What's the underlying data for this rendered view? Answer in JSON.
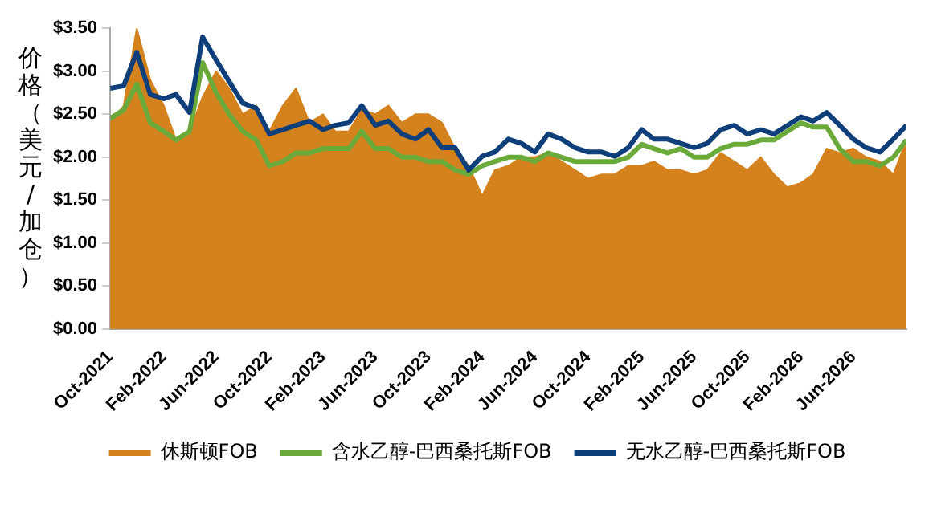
{
  "chart_data": {
    "type": "line",
    "ylabel": "价格（美元/加仓）",
    "x": [
      "2021-10",
      "2021-11",
      "2021-12",
      "2022-01",
      "2022-02",
      "2022-03",
      "2022-04",
      "2022-05",
      "2022-06",
      "2022-07",
      "2022-08",
      "2022-09",
      "2022-10",
      "2022-11",
      "2022-12",
      "2023-01",
      "2023-02",
      "2023-03",
      "2023-04",
      "2023-05",
      "2023-06",
      "2023-07",
      "2023-08",
      "2023-09",
      "2023-10",
      "2023-11",
      "2023-12",
      "2024-01",
      "2024-02",
      "2024-03",
      "2024-04",
      "2024-05",
      "2024-06",
      "2024-07",
      "2024-08",
      "2024-09",
      "2024-10",
      "2024-11",
      "2024-12",
      "2025-01",
      "2025-02",
      "2025-03",
      "2025-04",
      "2025-05",
      "2025-06",
      "2025-07",
      "2025-08",
      "2025-09",
      "2025-10",
      "2025-11",
      "2025-12",
      "2026-01",
      "2026-02",
      "2026-03",
      "2026-04",
      "2026-05",
      "2026-06",
      "2026-07",
      "2026-08",
      "2026-09",
      "2026-10"
    ],
    "series": [
      {
        "name": "休斯顿FOB",
        "type": "area",
        "color": "#d4821e",
        "values": [
          2.4,
          2.6,
          3.5,
          2.9,
          2.6,
          2.2,
          2.3,
          2.7,
          3.0,
          2.8,
          2.5,
          2.6,
          2.3,
          2.6,
          2.8,
          2.4,
          2.5,
          2.3,
          2.3,
          2.55,
          2.5,
          2.6,
          2.4,
          2.5,
          2.5,
          2.4,
          2.1,
          1.9,
          1.55,
          1.85,
          1.9,
          2.0,
          2.0,
          2.05,
          1.95,
          1.85,
          1.75,
          1.8,
          1.8,
          1.9,
          1.9,
          1.95,
          1.85,
          1.85,
          1.8,
          1.85,
          2.05,
          1.95,
          1.85,
          2.0,
          1.8,
          1.65,
          1.7,
          1.8,
          2.1,
          2.05,
          2.1,
          2.0,
          1.95,
          1.8,
          2.2
        ]
      },
      {
        "name": "含水乙醇-巴西桑托斯FOB",
        "type": "line",
        "color": "#6aaa3a",
        "values": [
          2.45,
          2.55,
          2.85,
          2.4,
          2.3,
          2.2,
          2.3,
          3.1,
          2.75,
          2.5,
          2.3,
          2.2,
          1.9,
          1.95,
          2.05,
          2.05,
          2.1,
          2.1,
          2.1,
          2.3,
          2.1,
          2.1,
          2.0,
          2.0,
          1.95,
          1.95,
          1.85,
          1.8,
          1.9,
          1.95,
          2.0,
          2.0,
          1.95,
          2.05,
          2.0,
          1.95,
          1.95,
          1.95,
          1.95,
          2.0,
          2.15,
          2.1,
          2.05,
          2.1,
          2.0,
          2.0,
          2.1,
          2.15,
          2.15,
          2.2,
          2.2,
          2.3,
          2.4,
          2.35,
          2.35,
          2.1,
          1.95,
          1.95,
          1.9,
          2.0,
          2.2
        ]
      },
      {
        "name": "无水乙醇-巴西桑托斯FOB",
        "type": "line",
        "color": "#0f3f7a",
        "values": [
          2.8,
          2.83,
          3.22,
          2.73,
          2.68,
          2.73,
          2.52,
          3.4,
          3.13,
          2.88,
          2.63,
          2.57,
          2.27,
          2.32,
          2.37,
          2.42,
          2.32,
          2.37,
          2.4,
          2.6,
          2.37,
          2.42,
          2.27,
          2.21,
          2.32,
          2.11,
          2.11,
          1.85,
          2.01,
          2.06,
          2.21,
          2.16,
          2.06,
          2.27,
          2.21,
          2.11,
          2.06,
          2.06,
          2.01,
          2.11,
          2.32,
          2.21,
          2.21,
          2.16,
          2.11,
          2.16,
          2.32,
          2.37,
          2.27,
          2.32,
          2.27,
          2.37,
          2.47,
          2.42,
          2.52,
          2.37,
          2.21,
          2.11,
          2.06,
          2.21,
          2.37
        ]
      }
    ],
    "xlim": [
      "2021-10",
      "2026-10"
    ],
    "xticks": [
      {
        "value": "2021-10",
        "label": "Oct-2021"
      },
      {
        "value": "2022-02",
        "label": "Feb-2022"
      },
      {
        "value": "2022-06",
        "label": "Jun-2022"
      },
      {
        "value": "2022-10",
        "label": "Oct-2022"
      },
      {
        "value": "2023-02",
        "label": "Feb-2023"
      },
      {
        "value": "2023-06",
        "label": "Jun-2023"
      },
      {
        "value": "2023-10",
        "label": "Oct-2023"
      },
      {
        "value": "2024-02",
        "label": "Feb-2024"
      },
      {
        "value": "2024-06",
        "label": "Jun-2024"
      },
      {
        "value": "2024-10",
        "label": "Oct-2024"
      },
      {
        "value": "2025-02",
        "label": "Feb-2025"
      },
      {
        "value": "2025-06",
        "label": "Jun-2025"
      },
      {
        "value": "2025-10",
        "label": "Oct-2025"
      },
      {
        "value": "2026-02",
        "label": "Feb-2026"
      },
      {
        "value": "2026-06",
        "label": "Jun-2026"
      }
    ],
    "ylim": [
      0,
      3.5
    ],
    "yticks": [
      {
        "value": 0,
        "label": "$0.00"
      },
      {
        "value": 0.5,
        "label": "$0.50"
      },
      {
        "value": 1,
        "label": "$1.00"
      },
      {
        "value": 1.5,
        "label": "$1.50"
      },
      {
        "value": 2,
        "label": "$2.00"
      },
      {
        "value": 2.5,
        "label": "$2.50"
      },
      {
        "value": 3,
        "label": "$3.00"
      },
      {
        "value": 3.5,
        "label": "$3.50"
      }
    ],
    "grid": false,
    "legend": "bottom"
  }
}
